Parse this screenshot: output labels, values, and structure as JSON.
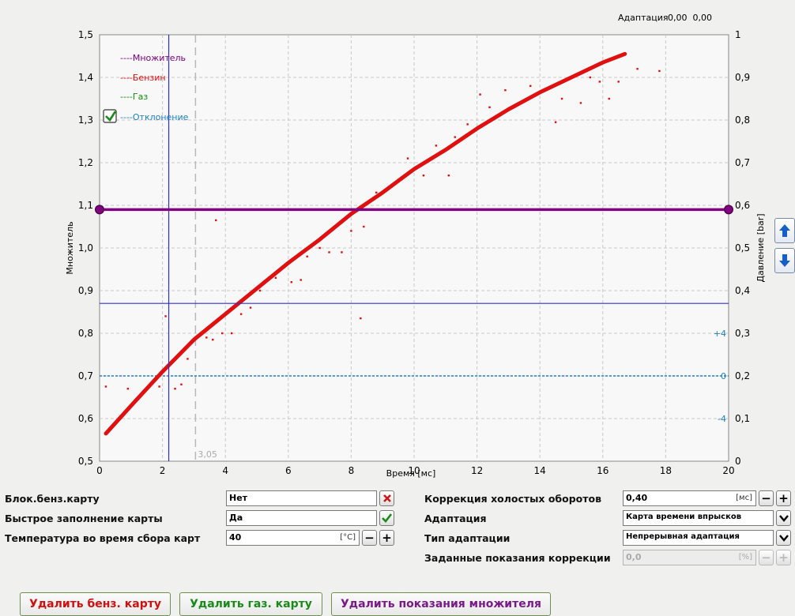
{
  "header": {
    "adaptation_label": "Адаптация",
    "adaptation_values": "0,00  0,00"
  },
  "chart_data": {
    "type": "line",
    "xlabel": "Время [мс]",
    "ylabel_left": "Множитель",
    "ylabel_right": "Давление [bar]",
    "xlim": [
      0,
      20
    ],
    "ylim_left": [
      0.5,
      1.5
    ],
    "ylim_right": [
      0,
      1
    ],
    "x_ticks": [
      "0",
      "2",
      "4",
      "6",
      "8",
      "10",
      "12",
      "14",
      "16",
      "18",
      "20"
    ],
    "y_left_ticks": [
      "0,5",
      "0,6",
      "0,7",
      "0,8",
      "0,9",
      "1,0",
      "1,1",
      "1,2",
      "1,3",
      "1,4",
      "1,5"
    ],
    "y_right_ticks": [
      "0",
      "0,1",
      "0,2",
      "0,3",
      "0,4",
      "0,5",
      "0,6",
      "0,7",
      "0,8",
      "0,9",
      "1"
    ],
    "grid": true,
    "legend": [
      {
        "name": "----Множитель",
        "color": "#800080"
      },
      {
        "name": "----Бензин",
        "color": "#e01010"
      },
      {
        "name": "----Газ",
        "color": "#109010"
      },
      {
        "name": "----Отклонение",
        "color": "#2080c0"
      }
    ],
    "deviation_labels": [
      {
        "text": "+4",
        "y_right": 0.3
      },
      {
        "text": "0",
        "y_right": 0.2
      },
      {
        "text": "-4",
        "y_right": 0.1
      }
    ],
    "multiplier_line": 1.09,
    "cursor_x": 2.2,
    "cursor_y": 0.87,
    "reference_x": 3.05,
    "reference_x_label": "3,05",
    "gasoline_curve": {
      "x": [
        0.2,
        1,
        2,
        3,
        4,
        5,
        6,
        7,
        8,
        9,
        10,
        11,
        12,
        13,
        14,
        15,
        16,
        16.7
      ],
      "y": [
        0.565,
        0.63,
        0.71,
        0.785,
        0.845,
        0.905,
        0.965,
        1.02,
        1.08,
        1.13,
        1.185,
        1.23,
        1.28,
        1.325,
        1.365,
        1.4,
        1.435,
        1.455
      ]
    },
    "gasoline_points": [
      {
        "x": 0.2,
        "y": 0.675
      },
      {
        "x": 0.9,
        "y": 0.67
      },
      {
        "x": 1.5,
        "y": 0.67
      },
      {
        "x": 1.9,
        "y": 0.675
      },
      {
        "x": 2.1,
        "y": 0.84
      },
      {
        "x": 2.4,
        "y": 0.67
      },
      {
        "x": 2.6,
        "y": 0.68
      },
      {
        "x": 2.8,
        "y": 0.74
      },
      {
        "x": 3.1,
        "y": 0.79
      },
      {
        "x": 3.4,
        "y": 0.79
      },
      {
        "x": 3.6,
        "y": 0.785
      },
      {
        "x": 3.7,
        "y": 1.065
      },
      {
        "x": 3.9,
        "y": 0.8
      },
      {
        "x": 4.2,
        "y": 0.8
      },
      {
        "x": 4.5,
        "y": 0.845
      },
      {
        "x": 4.8,
        "y": 0.86
      },
      {
        "x": 5.1,
        "y": 0.9
      },
      {
        "x": 5.6,
        "y": 0.93
      },
      {
        "x": 6.1,
        "y": 0.92
      },
      {
        "x": 6.4,
        "y": 0.925
      },
      {
        "x": 6.6,
        "y": 0.98
      },
      {
        "x": 7.0,
        "y": 1.0
      },
      {
        "x": 7.3,
        "y": 0.99
      },
      {
        "x": 7.7,
        "y": 0.99
      },
      {
        "x": 7.8,
        "y": 1.09
      },
      {
        "x": 8.0,
        "y": 1.04
      },
      {
        "x": 8.3,
        "y": 0.835
      },
      {
        "x": 8.4,
        "y": 1.05
      },
      {
        "x": 8.8,
        "y": 1.13
      },
      {
        "x": 9.1,
        "y": 1.09
      },
      {
        "x": 9.5,
        "y": 1.16
      },
      {
        "x": 9.8,
        "y": 1.21
      },
      {
        "x": 10.3,
        "y": 1.17
      },
      {
        "x": 10.7,
        "y": 1.24
      },
      {
        "x": 11.1,
        "y": 1.17
      },
      {
        "x": 11.3,
        "y": 1.26
      },
      {
        "x": 11.7,
        "y": 1.29
      },
      {
        "x": 12.1,
        "y": 1.36
      },
      {
        "x": 12.4,
        "y": 1.33
      },
      {
        "x": 12.9,
        "y": 1.37
      },
      {
        "x": 13.7,
        "y": 1.38
      },
      {
        "x": 14.5,
        "y": 1.295
      },
      {
        "x": 14.7,
        "y": 1.35
      },
      {
        "x": 15.3,
        "y": 1.34
      },
      {
        "x": 15.6,
        "y": 1.4
      },
      {
        "x": 15.9,
        "y": 1.39
      },
      {
        "x": 16.2,
        "y": 1.35
      },
      {
        "x": 16.5,
        "y": 1.39
      },
      {
        "x": 17.1,
        "y": 1.42
      },
      {
        "x": 17.8,
        "y": 1.415
      }
    ],
    "colors": {
      "gasoline": "#e01010",
      "multiplier": "#800080",
      "cursor": "#3030d0",
      "deviation": "#2080c0",
      "check": "#1a8a1a"
    }
  },
  "controls": {
    "block_map_label": "Блок.бенз.карту",
    "block_map_value": "Нет",
    "fast_fill_label": "Быстрое заполнение карты",
    "fast_fill_value": "Да",
    "temperature_label": "Температура во время сбора карт",
    "temperature_value": "40",
    "temperature_unit": "[°C]",
    "idle_correction_label": "Коррекция холостых оборотов",
    "idle_correction_value": "0,40",
    "idle_correction_unit": "[мс]",
    "adaptation_label": "Адаптация",
    "adaptation_value": "Карта времени впрысков",
    "adaptation_type_label": "Тип адаптации",
    "adaptation_type_value": "Непрерывная адаптация",
    "correction_setpoint_label": "Заданные показания коррекции",
    "correction_setpoint_value": "0,0",
    "correction_setpoint_unit": "[%]"
  },
  "buttons": {
    "delete_gasoline_map": "Удалить бенз. карту",
    "delete_gas_map": "Удалить газ. карту",
    "delete_multiplier": "Удалить показания множителя",
    "delete_gasoline_color": "#d01010",
    "delete_gas_color": "#1a8a1a",
    "delete_multiplier_color": "#7a1a8a"
  }
}
